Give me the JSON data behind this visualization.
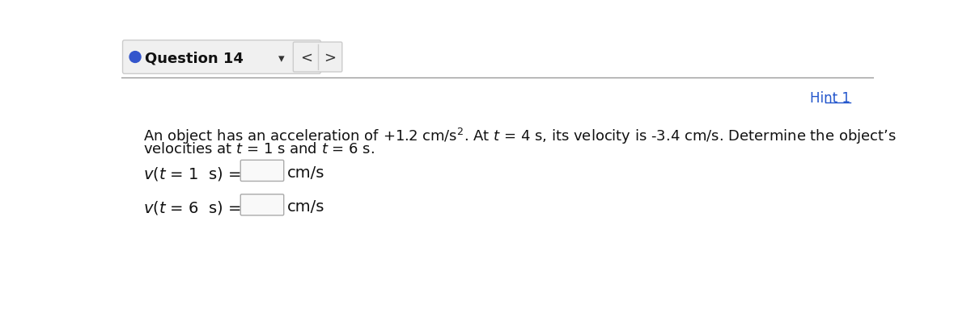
{
  "bg_color": "#ffffff",
  "header_bg": "#f0f0f0",
  "header_border": "#cccccc",
  "header_text": "Question 14",
  "header_circle_color": "#3355cc",
  "hint_text": "Hint 1",
  "hint_color": "#2255cc",
  "body_line1": "An object has an acceleration of +1.2 cm/s$^2$. At $t$ = 4 s, its velocity is -3.4 cm/s. Determine the object’s",
  "body_line2": "velocities at $t$ = 1 s and $t$ = 6 s.",
  "label1": "$v(t$ = 1  s$)$ =",
  "label2": "$v(t$ = 6  s$)$ =",
  "units": "cm/s",
  "input_box_color": "#f9f9f9",
  "input_box_border": "#aaaaaa",
  "separator_color": "#999999",
  "font_size_header": 13,
  "font_size_body": 13,
  "font_size_hint": 12,
  "font_size_label": 14
}
